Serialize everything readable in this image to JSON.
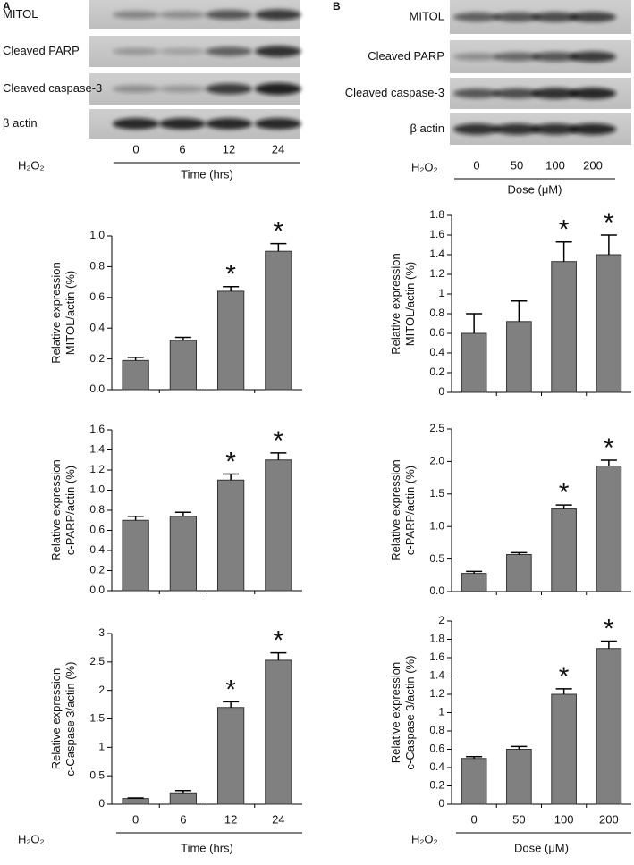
{
  "blots": [
    {
      "panel": "A",
      "bands": [
        "MITOL",
        "Cleaved PARP",
        "Cleaved caspase-3",
        "β actin"
      ],
      "treatment": "H₂O₂",
      "conditions": [
        "0",
        "6",
        "12",
        "24"
      ],
      "condition_axis": "Time (hrs)"
    },
    {
      "panel": "B",
      "bands": [
        "MITOL",
        "Cleaved PARP",
        "Cleaved caspase-3",
        "β actin"
      ],
      "treatment": "H₂O₂",
      "conditions": [
        "0",
        "50",
        "100",
        "200"
      ],
      "condition_axis": "Dose (μM)"
    }
  ],
  "chart_data": [
    {
      "type": "bar",
      "y_label": [
        "Relative expression",
        "MITOL/actin (%)"
      ],
      "categories": [
        null,
        null,
        null,
        null
      ],
      "values": [
        0.19,
        0.32,
        0.64,
        0.9
      ],
      "errors": [
        0.02,
        0.02,
        0.03,
        0.05
      ],
      "annotations": [
        null,
        null,
        "*",
        "*"
      ],
      "color": "#808080",
      "ylim": [
        0,
        1
      ],
      "yticks": [
        {
          "value": 0,
          "label": "0.0"
        },
        0.2,
        0.4,
        0.6,
        0.8,
        {
          "value": 1,
          "label": "1.0"
        }
      ]
    },
    {
      "type": "bar",
      "y_label": [
        "Relative expression",
        "MITOL/actin (%)"
      ],
      "categories": [
        null,
        null,
        null,
        null
      ],
      "values": [
        0.6,
        0.72,
        1.33,
        1.4
      ],
      "errors": [
        0.2,
        0.21,
        0.2,
        0.2
      ],
      "annotations": [
        null,
        null,
        "*",
        "*"
      ],
      "color": "#808080",
      "ylim": [
        0,
        1.8
      ],
      "yticks": [
        0,
        0.2,
        0.4,
        0.6,
        0.8,
        1,
        1.2,
        1.4,
        1.6,
        1.8
      ]
    },
    {
      "type": "bar",
      "y_label": [
        "Relative expression",
        "c-PARP/actin (%)"
      ],
      "categories": [
        null,
        null,
        null,
        null
      ],
      "values": [
        0.7,
        0.74,
        1.1,
        1.3
      ],
      "errors": [
        0.04,
        0.04,
        0.06,
        0.07
      ],
      "annotations": [
        null,
        null,
        "*",
        "*"
      ],
      "color": "#808080",
      "ylim": [
        0,
        1.6
      ],
      "yticks": [
        {
          "value": 0,
          "label": "0.0"
        },
        0.2,
        0.4,
        0.6,
        0.8,
        {
          "value": 1,
          "label": "1.0"
        },
        1.2,
        1.4,
        1.6
      ]
    },
    {
      "type": "bar",
      "y_label": [
        "Relative expression",
        "c-PARP/actin (%)"
      ],
      "categories": [
        null,
        null,
        null,
        null
      ],
      "values": [
        0.28,
        0.57,
        1.27,
        1.93
      ],
      "errors": [
        0.03,
        0.03,
        0.06,
        0.09
      ],
      "annotations": [
        null,
        null,
        "*",
        "*"
      ],
      "color": "#808080",
      "ylim": [
        0,
        2.5
      ],
      "yticks": [
        {
          "value": 0,
          "label": "0.0"
        },
        0.5,
        {
          "value": 1,
          "label": "1.0"
        },
        1.5,
        {
          "value": 2,
          "label": "2.0"
        },
        2.5
      ]
    },
    {
      "type": "bar",
      "y_label": [
        "Relative expression",
        "c-Caspase 3/actin (%)"
      ],
      "categories": [
        "0",
        "6",
        "12",
        "24"
      ],
      "treatment_label": "H₂O₂",
      "x_label": "Time (hrs)",
      "values": [
        0.1,
        0.2,
        1.7,
        2.53
      ],
      "errors": [
        0.01,
        0.04,
        0.1,
        0.13
      ],
      "annotations": [
        null,
        null,
        "*",
        "*"
      ],
      "color": "#808080",
      "ylim": [
        0,
        3
      ],
      "yticks": [
        0,
        0.5,
        1,
        1.5,
        2,
        2.5,
        3
      ]
    },
    {
      "type": "bar",
      "y_label": [
        "Relative expression",
        "c-Caspase 3/actin (%)"
      ],
      "categories": [
        "0",
        "50",
        "100",
        "200"
      ],
      "treatment_label": "H₂O₂",
      "x_label": "Dose (μM)",
      "values": [
        0.5,
        0.6,
        1.2,
        1.7
      ],
      "errors": [
        0.02,
        0.03,
        0.06,
        0.08
      ],
      "annotations": [
        null,
        null,
        "*",
        "*"
      ],
      "color": "#808080",
      "ylim": [
        0,
        2
      ],
      "yticks": [
        0,
        0.2,
        0.4,
        0.6,
        0.8,
        1,
        1.2,
        1.4,
        1.6,
        1.8,
        2
      ]
    }
  ]
}
